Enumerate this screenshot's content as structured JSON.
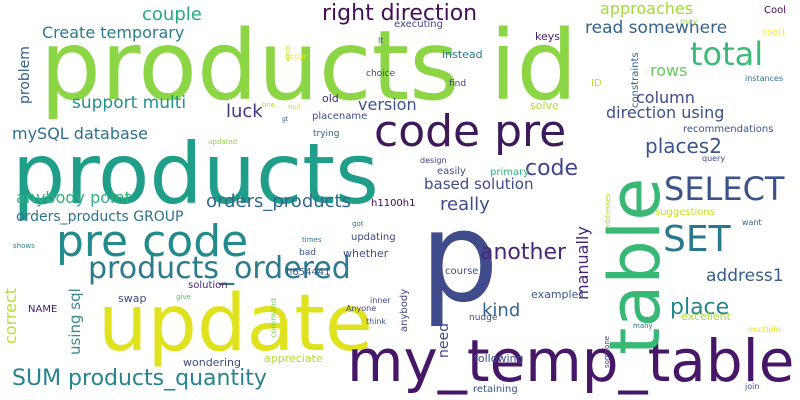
{
  "words": [
    {
      "text": "products id",
      "color": "#8cd646"
    },
    {
      "text": "products",
      "color": "#1f9e89"
    },
    {
      "text": "update",
      "color": "#e1e21f"
    },
    {
      "text": "my_temp_table",
      "color": "#471669"
    },
    {
      "text": "p",
      "color": "#3f4b8a"
    },
    {
      "text": "table",
      "color": "#38b875"
    },
    {
      "text": "code pre",
      "color": "#3e1a5a"
    },
    {
      "text": "pre code",
      "color": "#228b8d"
    },
    {
      "text": "products_ordered",
      "color": "#2b7b8e"
    },
    {
      "text": "SELECT",
      "color": "#3b528b"
    },
    {
      "text": "SET",
      "color": "#2a788e"
    },
    {
      "text": "total",
      "color": "#3bbb75"
    },
    {
      "text": "right direction",
      "color": "#440e57"
    },
    {
      "text": "Create temporary",
      "color": "#287d8e"
    },
    {
      "text": "couple",
      "color": "#25aa82"
    },
    {
      "text": "approaches",
      "color": "#a2da37"
    },
    {
      "text": "read somewhere",
      "color": "#33638d"
    },
    {
      "text": "SUM products_quantity",
      "color": "#25848e"
    },
    {
      "text": "another",
      "color": "#482677"
    },
    {
      "text": "place",
      "color": "#23888e"
    },
    {
      "text": "orders_products",
      "color": "#31688e"
    },
    {
      "text": "code",
      "color": "#404688"
    },
    {
      "text": "places2",
      "color": "#3a548c"
    },
    {
      "text": "support multi",
      "color": "#21918c"
    },
    {
      "text": "mySQL database",
      "color": "#2d708e"
    },
    {
      "text": "anybody point",
      "color": "#2db27d"
    },
    {
      "text": "orders_products GROUP",
      "color": "#2c738e"
    },
    {
      "text": "rows",
      "color": "#65cb5e"
    },
    {
      "text": "column",
      "color": "#3f4889"
    },
    {
      "text": "direction using",
      "color": "#3c4f8a"
    },
    {
      "text": "version",
      "color": "#3b528b"
    },
    {
      "text": "luck",
      "color": "#46327e"
    },
    {
      "text": "really",
      "color": "#3d4d8a"
    },
    {
      "text": "based solution",
      "color": "#3e4c8a"
    },
    {
      "text": "address1",
      "color": "#365c8d"
    },
    {
      "text": "kind",
      "color": "#33638d"
    },
    {
      "text": "manually",
      "color": "#482475"
    },
    {
      "text": "tried",
      "color": "#5ec962"
    },
    {
      "text": "problem",
      "color": "#34618d"
    },
    {
      "text": "need",
      "color": "#3e4989"
    },
    {
      "text": "correct",
      "color": "#b8de29"
    },
    {
      "text": "using sql",
      "color": "#3b8a8c"
    },
    {
      "text": "Cool",
      "color": "#440154"
    },
    {
      "text": "cool1",
      "color": "#fde725"
    },
    {
      "text": "keys",
      "color": "#482173"
    },
    {
      "text": "instead",
      "color": "#2a788e"
    },
    {
      "text": "ID",
      "color": "#bddf26"
    },
    {
      "text": "constraints",
      "color": "#34608d"
    },
    {
      "text": "instances",
      "color": "#2c738e"
    },
    {
      "text": "recommendations",
      "color": "#39568c"
    },
    {
      "text": "executing",
      "color": "#404588"
    },
    {
      "text": "may",
      "color": "#9bd93c"
    },
    {
      "text": "occur",
      "color": "#e5e419"
    },
    {
      "text": "work",
      "color": "#d0e11c"
    },
    {
      "text": "lt",
      "color": "#3a548c"
    },
    {
      "text": "choice",
      "color": "#404588"
    },
    {
      "text": "find",
      "color": "#453882"
    },
    {
      "text": "old",
      "color": "#482878"
    },
    {
      "text": "solve",
      "color": "#b5de2b"
    },
    {
      "text": "one",
      "color": "#b8de29"
    },
    {
      "text": "null",
      "color": "#c2df23"
    },
    {
      "text": "placename",
      "color": "#3d4e8a"
    },
    {
      "text": "gt",
      "color": "#3e4a89"
    },
    {
      "text": "trying",
      "color": "#355f8d"
    },
    {
      "text": "updated",
      "color": "#90d743"
    },
    {
      "text": "query",
      "color": "#3e4989"
    },
    {
      "text": "design",
      "color": "#433e85"
    },
    {
      "text": "easily",
      "color": "#3d4d8a"
    },
    {
      "text": "primary",
      "color": "#32b67a"
    },
    {
      "text": "h1100h1",
      "color": "#440154"
    },
    {
      "text": "suggestions",
      "color": "#c8e020"
    },
    {
      "text": "want",
      "color": "#33638d"
    },
    {
      "text": "addresses",
      "color": "#a5db36"
    },
    {
      "text": "got",
      "color": "#2a768e"
    },
    {
      "text": "times",
      "color": "#29798e"
    },
    {
      "text": "bad",
      "color": "#3b528b"
    },
    {
      "text": "shows",
      "color": "#26828e"
    },
    {
      "text": "whether",
      "color": "#3b528b"
    },
    {
      "text": "updating",
      "color": "#3f4889"
    },
    {
      "text": "course",
      "color": "#3e4c8a"
    },
    {
      "text": "h654441",
      "color": "#3a548c"
    },
    {
      "text": "give",
      "color": "#4ac16d"
    },
    {
      "text": "solution",
      "color": "#482576"
    },
    {
      "text": "example1",
      "color": "#39568c"
    },
    {
      "text": "excellent",
      "color": "#a8db34"
    },
    {
      "text": "command",
      "color": "#7ad151"
    },
    {
      "text": "swap",
      "color": "#3e4989"
    },
    {
      "text": "NAME",
      "color": "#481a6c"
    },
    {
      "text": "inner",
      "color": "#3e4a89"
    },
    {
      "text": "Anyone",
      "color": "#404588"
    },
    {
      "text": "nudge",
      "color": "#3c508b"
    },
    {
      "text": "think",
      "color": "#3a548c"
    },
    {
      "text": "anybody",
      "color": "#404588"
    },
    {
      "text": "many",
      "color": "#2c718e"
    },
    {
      "text": "multiple",
      "color": "#e3e418"
    },
    {
      "text": "wondering",
      "color": "#3e4a89"
    },
    {
      "text": "appreciate",
      "color": "#b2dd2d"
    },
    {
      "text": "following",
      "color": "#3e4989"
    },
    {
      "text": "someone",
      "color": "#46337f"
    },
    {
      "text": "retaining",
      "color": "#3b518b"
    },
    {
      "text": "join",
      "color": "#3e4a89"
    }
  ]
}
